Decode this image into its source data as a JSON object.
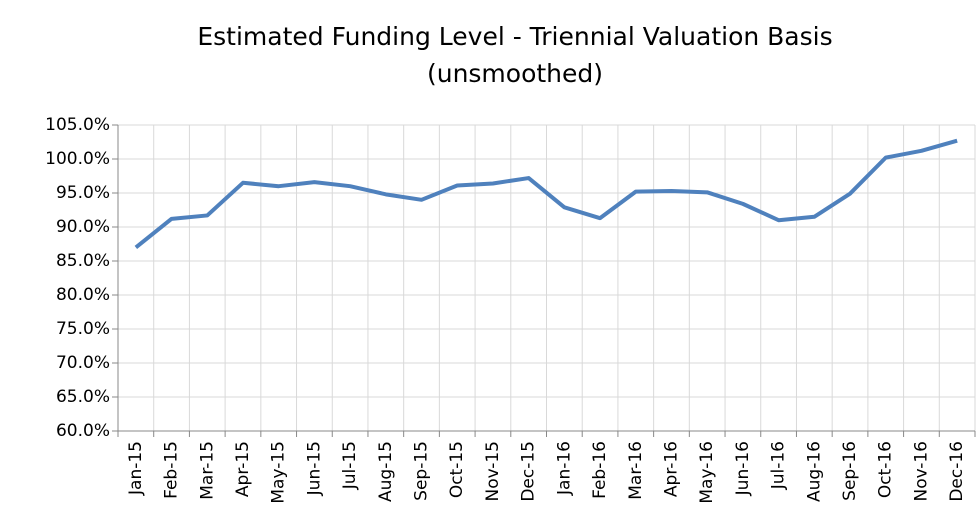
{
  "chart_data": {
    "type": "line",
    "title": "Estimated Funding Level - Triennial Valuation Basis",
    "subtitle": "(unsmoothed)",
    "categories": [
      "Jan-15",
      "Feb-15",
      "Mar-15",
      "Apr-15",
      "May-15",
      "Jun-15",
      "Jul-15",
      "Aug-15",
      "Sep-15",
      "Oct-15",
      "Nov-15",
      "Dec-15",
      "Jan-16",
      "Feb-16",
      "Mar-16",
      "Apr-16",
      "May-16",
      "Jun-16",
      "Jul-16",
      "Aug-16",
      "Sep-16",
      "Oct-16",
      "Nov-16",
      "Dec-16"
    ],
    "series": [
      {
        "color": "#4f81bd",
        "values": [
          87.0,
          91.2,
          91.7,
          96.5,
          96.0,
          96.6,
          96.0,
          94.8,
          94.0,
          96.1,
          96.4,
          97.2,
          92.9,
          91.3,
          95.2,
          95.3,
          95.1,
          93.4,
          91.0,
          91.5,
          94.9,
          100.2,
          101.2,
          102.7
        ]
      }
    ],
    "ylim": [
      60,
      105
    ],
    "yticks": [
      {
        "value": 60,
        "label": "60.0%"
      },
      {
        "value": 65,
        "label": "65.0%"
      },
      {
        "value": 70,
        "label": "70.0%"
      },
      {
        "value": 75,
        "label": "75.0%"
      },
      {
        "value": 80,
        "label": "80.0%"
      },
      {
        "value": 85,
        "label": "85.0%"
      },
      {
        "value": 90,
        "label": "90.0%"
      },
      {
        "value": 95,
        "label": "95.0%"
      },
      {
        "value": 100,
        "label": "100.0%"
      },
      {
        "value": 105,
        "label": "105.0%"
      }
    ],
    "grid": true
  }
}
